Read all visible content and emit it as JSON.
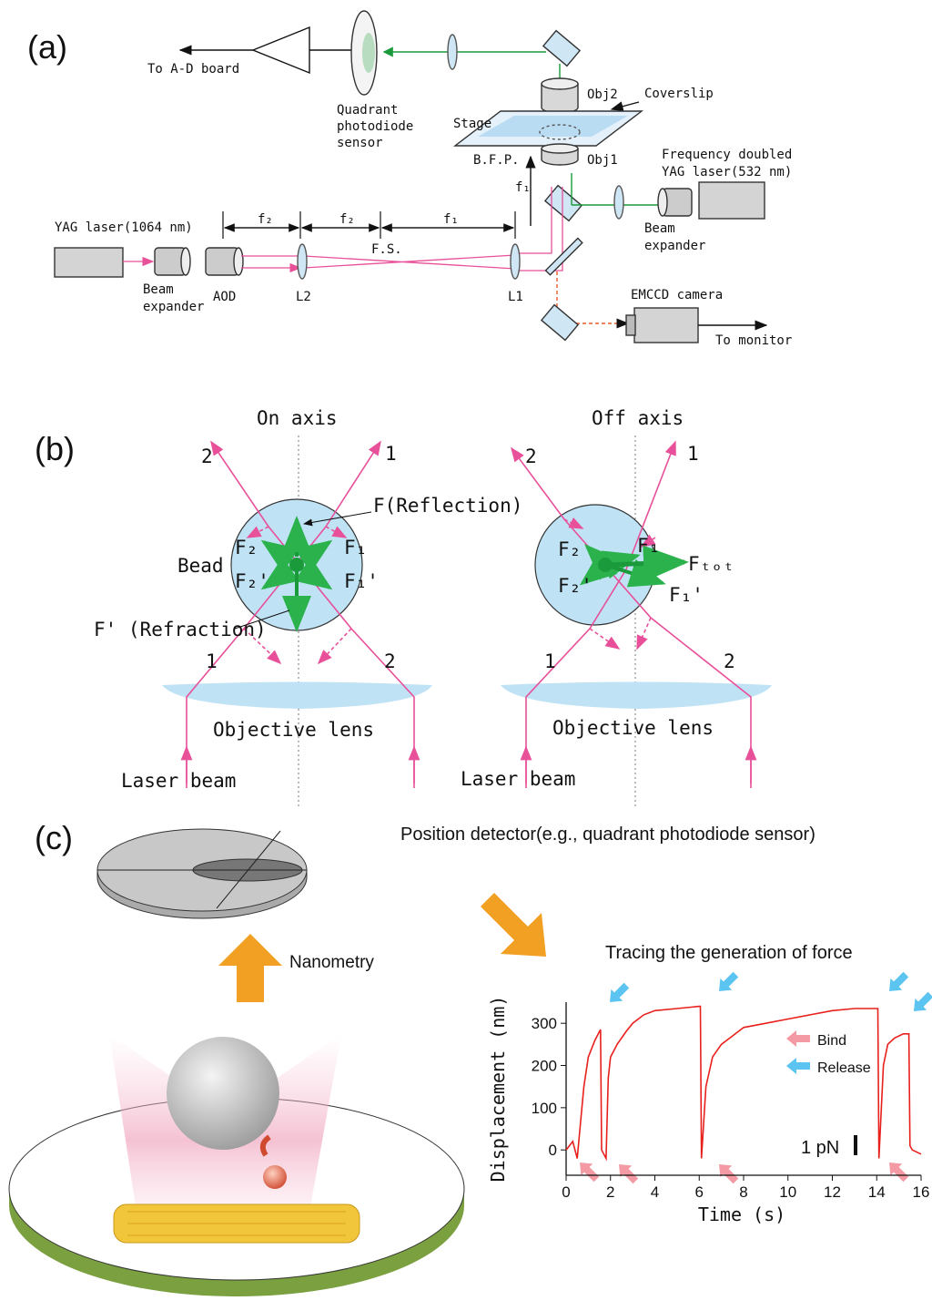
{
  "panel_a": {
    "label": "(a)",
    "to_ad_board": "To A-D board",
    "qpd": [
      "Quadrant",
      "photodiode",
      "sensor"
    ],
    "obj2": "Obj2",
    "coverslip": "Coverslip",
    "stage": "Stage",
    "bfp": "B.F.P.",
    "obj1": "Obj1",
    "green_laser": [
      "Frequency doubled",
      "YAG laser(532 nm)"
    ],
    "f1_vertical": "f₁",
    "ir_laser": "YAG laser(1064 nm)",
    "dims": [
      "f₂",
      "f₂",
      "f₁"
    ],
    "fs": "F.S.",
    "beam_expander_left": [
      "Beam",
      "expander"
    ],
    "aod": "AOD",
    "l2": "L2",
    "l1": "L1",
    "beam_expander_right": [
      "Beam",
      "expander"
    ],
    "camera": "EMCCD camera",
    "to_monitor": "To monitor"
  },
  "panel_b": {
    "label": "(b)",
    "on_axis": {
      "title": "On axis",
      "out2": "2",
      "out1": "1",
      "f_reflection": "F(Reflection)",
      "bead": "Bead",
      "f2": "F₂",
      "f1": "F₁",
      "f2p": "F₂'",
      "f1p": "F₁'",
      "f_refraction": "F' (Refraction)",
      "in1": "1",
      "in2": "2",
      "objective": "Objective lens",
      "laser": "Laser beam"
    },
    "off_axis": {
      "title": "Off axis",
      "out2": "2",
      "out1": "1",
      "f2": "F₂",
      "f1": "F₁",
      "ftot": "Fₜₒₜ",
      "f2p": "F₂'",
      "f1p": "F₁'",
      "in1": "1",
      "in2": "2",
      "objective": "Objective lens",
      "laser": "Laser beam"
    }
  },
  "panel_c": {
    "label": "(c)",
    "detector": "Position detector(e.g., quadrant photodiode sensor)",
    "nanometry": "Nanometry",
    "trace_title": "Tracing the generation of force",
    "chart": {
      "type": "line",
      "x_label": "Time (s)",
      "y_label": "Displacement (nm)",
      "color": "#e8201c",
      "x": [
        0,
        0.3,
        0.5,
        0.8,
        1.0,
        1.3,
        1.5,
        1.55,
        1.6,
        1.8,
        1.9,
        2.0,
        2.3,
        2.7,
        3.0,
        3.5,
        4.0,
        5.0,
        6.0,
        6.05,
        6.1,
        6.3,
        6.6,
        7.0,
        7.5,
        8.0,
        9.0,
        10.0,
        11.0,
        12.0,
        13.0,
        14.0,
        14.05,
        14.1,
        14.3,
        14.5,
        14.8,
        15.2,
        15.45,
        15.5,
        15.6,
        16.0
      ],
      "y": [
        0,
        20,
        -20,
        150,
        220,
        260,
        280,
        285,
        0,
        -20,
        170,
        220,
        250,
        280,
        300,
        320,
        330,
        335,
        340,
        340,
        -20,
        150,
        220,
        250,
        270,
        290,
        300,
        310,
        320,
        330,
        335,
        335,
        335,
        -20,
        200,
        250,
        265,
        275,
        275,
        10,
        0,
        -10
      ],
      "xlim": [
        0,
        16
      ],
      "ylim": [
        -60,
        350
      ],
      "xticks": [
        0,
        2,
        4,
        6,
        8,
        10,
        12,
        14,
        16
      ],
      "yticks": [
        0,
        100,
        200,
        300
      ],
      "legend": [
        "Bind",
        "Release"
      ],
      "scale_bar": "1 pN"
    }
  }
}
